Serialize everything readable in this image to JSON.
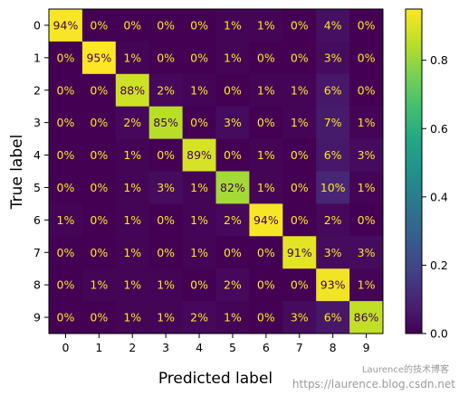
{
  "chart_data": {
    "type": "heatmap",
    "title": "",
    "xlabel": "Predicted label",
    "ylabel": "True label",
    "x_categories": [
      "0",
      "1",
      "2",
      "3",
      "4",
      "5",
      "6",
      "7",
      "8",
      "9"
    ],
    "y_categories": [
      "0",
      "1",
      "2",
      "3",
      "4",
      "5",
      "6",
      "7",
      "8",
      "9"
    ],
    "values": [
      [
        0.94,
        0.0,
        0.0,
        0.0,
        0.0,
        0.01,
        0.01,
        0.0,
        0.04,
        0.0
      ],
      [
        0.0,
        0.95,
        0.01,
        0.0,
        0.0,
        0.01,
        0.0,
        0.0,
        0.03,
        0.0
      ],
      [
        0.0,
        0.0,
        0.88,
        0.02,
        0.01,
        0.0,
        0.01,
        0.01,
        0.06,
        0.0
      ],
      [
        0.0,
        0.0,
        0.02,
        0.85,
        0.0,
        0.03,
        0.0,
        0.01,
        0.07,
        0.01
      ],
      [
        0.0,
        0.0,
        0.01,
        0.0,
        0.89,
        0.0,
        0.01,
        0.0,
        0.06,
        0.03
      ],
      [
        0.0,
        0.0,
        0.01,
        0.03,
        0.01,
        0.82,
        0.01,
        0.0,
        0.1,
        0.01
      ],
      [
        0.01,
        0.0,
        0.01,
        0.0,
        0.01,
        0.02,
        0.94,
        0.0,
        0.02,
        0.0
      ],
      [
        0.0,
        0.0,
        0.01,
        0.0,
        0.01,
        0.0,
        0.0,
        0.91,
        0.03,
        0.03
      ],
      [
        0.0,
        0.01,
        0.01,
        0.01,
        0.0,
        0.02,
        0.0,
        0.0,
        0.93,
        0.01
      ],
      [
        0.0,
        0.0,
        0.01,
        0.01,
        0.02,
        0.01,
        0.0,
        0.03,
        0.06,
        0.86
      ]
    ],
    "value_format": "percent",
    "colormap": "viridis",
    "vmin": 0.0,
    "vmax": 0.95,
    "colorbar": {
      "ticks": [
        0.0,
        0.2,
        0.4,
        0.6,
        0.8
      ],
      "tick_labels": [
        "0.0",
        "0.2",
        "0.4",
        "0.6",
        "0.8"
      ]
    },
    "label_colors": {
      "dark_cells": "#fde725",
      "bright_cells": "#440154"
    },
    "grid": false
  },
  "watermark": {
    "line1": "Laurence的技术博客",
    "line2": "https://laurence.blog.csdn.net"
  }
}
